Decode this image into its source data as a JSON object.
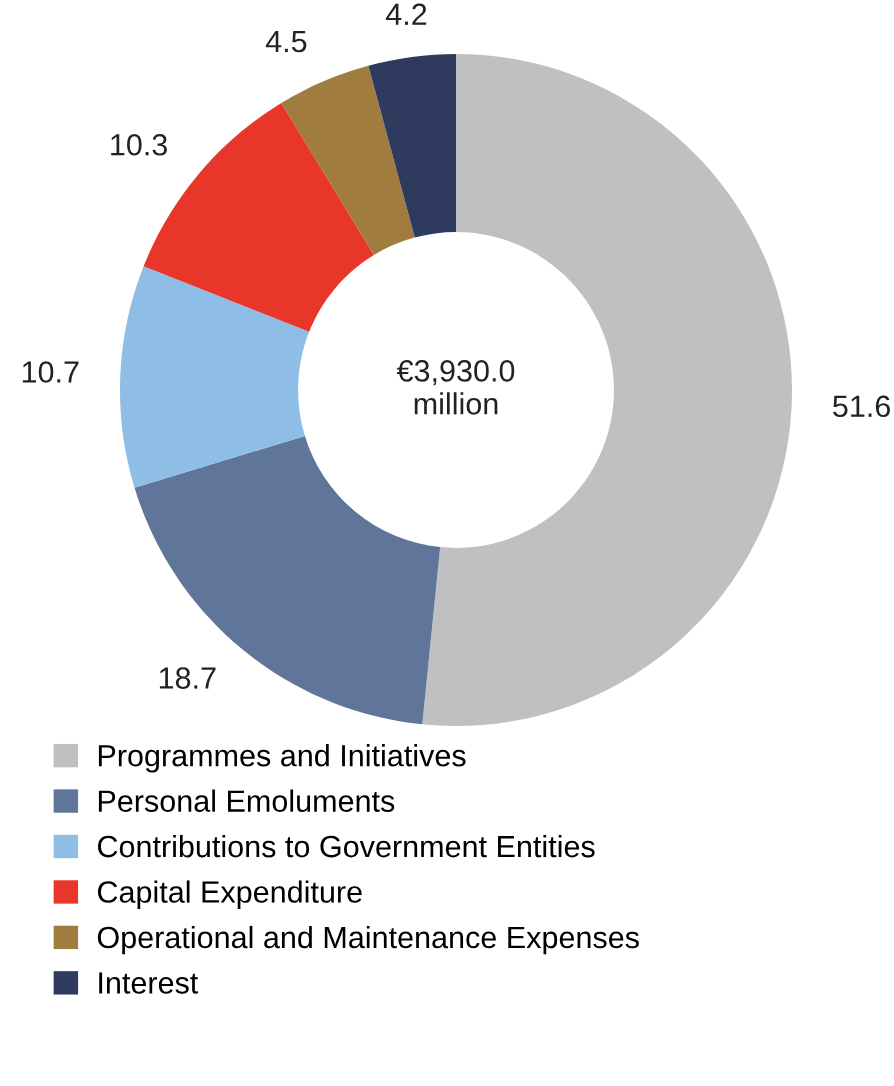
{
  "chart_data": {
    "type": "donut",
    "categories": [
      "Programmes and Initiatives",
      "Personal Emoluments",
      "Contributions to Government Entities",
      "Capital Expenditure",
      "Operational and Maintenance Expenses",
      "Interest"
    ],
    "values": [
      51.6,
      18.7,
      10.7,
      10.3,
      4.5,
      4.2
    ],
    "colors": [
      "#bfc0c2",
      "#5f7599",
      "#8ebde6",
      "#e8372a",
      "#a07d3e",
      "#2e3b5e"
    ],
    "data_labels": true,
    "annotations": [
      "€3,930.0\nmillion"
    ],
    "legend": "bottom"
  }
}
